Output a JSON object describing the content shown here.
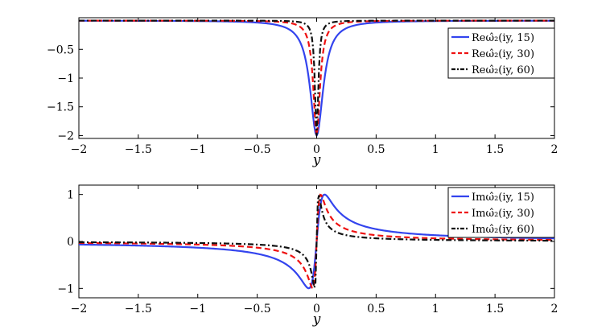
{
  "chart_data": [
    {
      "type": "line",
      "xlabel": "y",
      "ylabel": "",
      "xlim": [
        -2,
        2
      ],
      "ylim": [
        -2.05,
        0.05
      ],
      "xticks": [
        -2,
        -1.5,
        -1,
        -0.5,
        0,
        0.5,
        1,
        1.5,
        2
      ],
      "xtick_labels": [
        "−2",
        "−1.5",
        "−1",
        "−0.5",
        "0",
        "0.5",
        "1",
        "1.5",
        "2"
      ],
      "yticks": [
        -0.5,
        -1,
        -1.5,
        -2
      ],
      "ytick_labels": [
        "−0.5",
        "−1",
        "−1.5",
        "−2"
      ],
      "legend_position": "top-right",
      "grid": false,
      "series": [
        {
          "name": "Reω̂₂(iy, 15)",
          "t": 15,
          "color": "#3344ee",
          "style": "solid",
          "x": [
            -2,
            -1,
            -0.5,
            -0.3,
            -0.2,
            -0.15,
            -0.1,
            -0.067,
            -0.033,
            0,
            0.033,
            0.067,
            0.1,
            0.15,
            0.2,
            0.3,
            0.5,
            1,
            2
          ],
          "values": [
            -0.0001,
            -0.0009,
            -0.0073,
            -0.0336,
            -0.112,
            -0.258,
            -0.64,
            -1.21,
            -1.8,
            -2.0,
            -1.8,
            -1.21,
            -0.64,
            -0.258,
            -0.112,
            -0.0336,
            -0.0073,
            -0.0009,
            -0.0001
          ]
        },
        {
          "name": "Reω̂₂(iy, 30)",
          "t": 30,
          "color": "#ee1111",
          "style": "dashed",
          "x": [
            -2,
            -1,
            -0.5,
            -0.2,
            -0.1,
            -0.067,
            -0.05,
            -0.033,
            -0.017,
            0,
            0.017,
            0.033,
            0.05,
            0.067,
            0.1,
            0.2,
            0.5,
            1,
            2
          ],
          "values": [
            0,
            -0.0001,
            -0.0009,
            -0.0139,
            -0.112,
            -0.38,
            -0.75,
            -1.21,
            -1.8,
            -2.0,
            -1.8,
            -1.21,
            -0.75,
            -0.38,
            -0.112,
            -0.0139,
            -0.0009,
            -0.0001,
            0
          ]
        },
        {
          "name": "Reω̂₂(iy, 60)",
          "t": 60,
          "color": "#111111",
          "style": "dashdot",
          "x": [
            -2,
            -1,
            -0.5,
            -0.1,
            -0.05,
            -0.033,
            -0.025,
            -0.017,
            -0.008,
            0,
            0.008,
            0.017,
            0.025,
            0.033,
            0.05,
            0.1,
            0.5,
            1,
            2
          ],
          "values": [
            0,
            0,
            -0.0001,
            -0.0139,
            -0.112,
            -0.38,
            -0.75,
            -1.21,
            -1.8,
            -2.0,
            -1.8,
            -1.21,
            -0.75,
            -0.38,
            -0.112,
            -0.0139,
            -0.0001,
            0,
            0
          ]
        }
      ]
    },
    {
      "type": "line",
      "xlabel": "y",
      "ylabel": "",
      "xlim": [
        -2,
        2
      ],
      "ylim": [
        -1.2,
        1.2
      ],
      "xticks": [
        -2,
        -1.5,
        -1,
        -0.5,
        0,
        0.5,
        1,
        1.5,
        2
      ],
      "xtick_labels": [
        "−2",
        "−1.5",
        "−1",
        "−0.5",
        "0",
        "0.5",
        "1",
        "1.5",
        "2"
      ],
      "yticks": [
        1,
        0,
        -1
      ],
      "ytick_labels": [
        "1",
        "0",
        "−1"
      ],
      "legend_position": "top-right",
      "grid": false,
      "series": [
        {
          "name": "Imω̂₂(iy, 15)",
          "t": 15,
          "color": "#3344ee",
          "style": "solid",
          "x": [
            -2,
            -1.5,
            -1,
            -0.5,
            -0.3,
            -0.2,
            -0.15,
            -0.1,
            -0.05,
            0,
            0.05,
            0.1,
            0.15,
            0.2,
            0.3,
            0.5,
            1,
            1.5,
            2
          ],
          "values": [
            -0.1,
            -0.13,
            -0.2,
            -0.38,
            -0.6,
            -0.81,
            -0.96,
            -1.1,
            -0.8,
            0,
            0.8,
            1.1,
            0.96,
            0.81,
            0.6,
            0.38,
            0.2,
            0.13,
            0.1
          ]
        },
        {
          "name": "Imω̂₂(iy, 30)",
          "t": 30,
          "color": "#ee1111",
          "style": "dashed",
          "x": [
            -2,
            -1.5,
            -1,
            -0.5,
            -0.3,
            -0.2,
            -0.1,
            -0.067,
            -0.05,
            -0.025,
            0,
            0.025,
            0.05,
            0.067,
            0.1,
            0.2,
            0.3,
            0.5,
            1,
            1.5,
            2
          ],
          "values": [
            -0.05,
            -0.065,
            -0.1,
            -0.2,
            -0.32,
            -0.46,
            -0.8,
            -1.0,
            -1.0,
            -0.7,
            0,
            0.7,
            1.0,
            1.0,
            0.8,
            0.46,
            0.32,
            0.2,
            0.1,
            0.065,
            0.05
          ]
        },
        {
          "name": "Imω̂₂(iy, 60)",
          "t": 60,
          "color": "#111111",
          "style": "dashdot",
          "x": [
            -2,
            -1.5,
            -1,
            -0.5,
            -0.2,
            -0.1,
            -0.05,
            -0.033,
            -0.025,
            -0.012,
            0,
            0.012,
            0.025,
            0.033,
            0.05,
            0.1,
            0.2,
            0.5,
            1,
            1.5,
            2
          ],
          "values": [
            -0.025,
            -0.033,
            -0.05,
            -0.1,
            -0.25,
            -0.46,
            -0.8,
            -1.0,
            -1.1,
            -0.7,
            0,
            0.7,
            1.1,
            1.0,
            0.8,
            0.46,
            0.25,
            0.1,
            0.05,
            0.033,
            0.025
          ]
        }
      ]
    }
  ]
}
